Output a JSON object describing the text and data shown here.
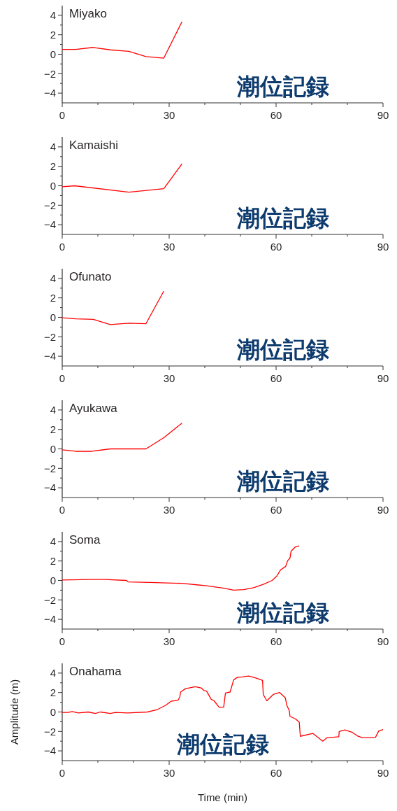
{
  "chart_data": [
    {
      "type": "line",
      "title": "Miyako",
      "x": [
        0,
        3.8,
        8.7,
        13.5,
        18.7,
        23.5,
        28.5,
        33.6
      ],
      "series": [
        {
          "color": "#ff0000",
          "values": [
            0.5,
            0.5,
            0.7,
            0.45,
            0.3,
            -0.25,
            -0.4,
            3.35
          ]
        }
      ],
      "xlim": [
        0,
        90
      ],
      "ylim": [
        -5,
        5
      ],
      "xticks": [
        0,
        {
          "value": 10,
          "label": null
        },
        {
          "value": 20,
          "label": null
        },
        30,
        {
          "value": 40,
          "label": null
        },
        {
          "value": 50,
          "label": null
        },
        60,
        {
          "value": 70,
          "label": null
        },
        {
          "value": 80,
          "label": null
        },
        90
      ],
      "yticks": [
        -4,
        {
          "value": -3,
          "label": null
        },
        -2,
        {
          "value": -1,
          "label": null
        },
        0,
        {
          "value": 1,
          "label": null
        },
        2,
        {
          "value": 3,
          "label": null
        },
        4
      ],
      "annotations": [
        "潮位記録"
      ]
    },
    {
      "type": "line",
      "title": "Kamaishi",
      "x": [
        0,
        3.5,
        18.7,
        28.5,
        33.6
      ],
      "series": [
        {
          "color": "#ff0000",
          "values": [
            -0.1,
            0,
            -0.65,
            -0.3,
            2.25
          ]
        }
      ],
      "xlim": [
        0,
        90
      ],
      "ylim": [
        -5,
        5
      ],
      "xticks": [
        0,
        {
          "value": 10,
          "label": null
        },
        {
          "value": 20,
          "label": null
        },
        30,
        {
          "value": 40,
          "label": null
        },
        {
          "value": 50,
          "label": null
        },
        60,
        {
          "value": 70,
          "label": null
        },
        {
          "value": 80,
          "label": null
        },
        90
      ],
      "yticks": [
        -4,
        {
          "value": -3,
          "label": null
        },
        -2,
        {
          "value": -1,
          "label": null
        },
        0,
        {
          "value": 1,
          "label": null
        },
        2,
        {
          "value": 3,
          "label": null
        },
        4
      ],
      "annotations": [
        "潮位記録"
      ]
    },
    {
      "type": "line",
      "title": "Ofunato",
      "x": [
        0,
        3.8,
        8.7,
        13.5,
        18.7,
        23.5,
        28.5
      ],
      "series": [
        {
          "color": "#ff0000",
          "values": [
            -0.05,
            -0.15,
            -0.2,
            -0.75,
            -0.6,
            -0.65,
            2.7
          ]
        }
      ],
      "xlim": [
        0,
        90
      ],
      "ylim": [
        -5,
        5
      ],
      "xticks": [
        0,
        {
          "value": 10,
          "label": null
        },
        {
          "value": 20,
          "label": null
        },
        30,
        {
          "value": 40,
          "label": null
        },
        {
          "value": 50,
          "label": null
        },
        60,
        {
          "value": 70,
          "label": null
        },
        {
          "value": 80,
          "label": null
        },
        90
      ],
      "yticks": [
        -4,
        {
          "value": -3,
          "label": null
        },
        -2,
        {
          "value": -1,
          "label": null
        },
        0,
        {
          "value": 1,
          "label": null
        },
        2,
        {
          "value": 3,
          "label": null
        },
        4
      ],
      "annotations": [
        "潮位記録"
      ]
    },
    {
      "type": "line",
      "title": "Ayukawa",
      "x": [
        0,
        3.8,
        8.3,
        13.5,
        18.7,
        23.5,
        28.5,
        33.6
      ],
      "series": [
        {
          "color": "#ff0000",
          "values": [
            -0.1,
            -0.25,
            -0.25,
            0,
            0,
            0,
            1.15,
            2.65
          ]
        }
      ],
      "xlim": [
        0,
        90
      ],
      "ylim": [
        -5,
        5
      ],
      "xticks": [
        0,
        {
          "value": 10,
          "label": null
        },
        {
          "value": 20,
          "label": null
        },
        30,
        {
          "value": 40,
          "label": null
        },
        {
          "value": 50,
          "label": null
        },
        60,
        {
          "value": 70,
          "label": null
        },
        {
          "value": 80,
          "label": null
        },
        90
      ],
      "yticks": [
        -4,
        {
          "value": -3,
          "label": null
        },
        -2,
        {
          "value": -1,
          "label": null
        },
        0,
        {
          "value": 1,
          "label": null
        },
        2,
        {
          "value": 3,
          "label": null
        },
        4
      ],
      "annotations": [
        "潮位記録"
      ]
    },
    {
      "type": "line",
      "title": "Soma",
      "x": [
        0,
        8,
        12,
        18,
        18.5,
        24.6,
        33.6,
        37.7,
        40.5,
        45.4,
        48.1,
        50.9,
        53.7,
        56.4,
        58.9,
        60.2,
        61.3,
        62.7,
        63.2,
        63.9,
        64.2,
        65.4,
        66.5
      ],
      "series": [
        {
          "color": "#ff0000",
          "values": [
            0.05,
            0.1,
            0.1,
            0,
            -0.15,
            -0.2,
            -0.3,
            -0.45,
            -0.55,
            -0.8,
            -1,
            -0.95,
            -0.75,
            -0.4,
            0,
            0.45,
            1.1,
            1.45,
            2,
            2.3,
            3,
            3.45,
            3.55
          ]
        }
      ],
      "xlim": [
        0,
        90
      ],
      "ylim": [
        -5,
        5
      ],
      "xticks": [
        0,
        {
          "value": 10,
          "label": null
        },
        {
          "value": 20,
          "label": null
        },
        30,
        {
          "value": 40,
          "label": null
        },
        {
          "value": 50,
          "label": null
        },
        60,
        {
          "value": 70,
          "label": null
        },
        {
          "value": 80,
          "label": null
        },
        90
      ],
      "yticks": [
        -4,
        {
          "value": -3,
          "label": null
        },
        -2,
        {
          "value": -1,
          "label": null
        },
        0,
        {
          "value": 1,
          "label": null
        },
        2,
        {
          "value": 3,
          "label": null
        },
        4
      ],
      "annotations": [
        "潮位記録"
      ]
    },
    {
      "type": "line",
      "title": "Onahama",
      "xlabel": "Time (min)",
      "ylabel": "Amplitude (m)",
      "x": [
        0,
        1.7,
        2.8,
        4.5,
        7.3,
        9.3,
        10.7,
        13.5,
        14.9,
        18.4,
        23.9,
        26.7,
        29.1,
        30.5,
        32.5,
        33,
        33.2,
        34.6,
        37.4,
        39.1,
        39.8,
        40.5,
        41.8,
        42.6,
        44,
        45.3,
        45.8,
        47.1,
        48.1,
        49.1,
        50.5,
        52.3,
        52.9,
        54.3,
        56.2,
        56.4,
        57.4,
        59.2,
        61,
        62.6,
        63,
        63.7,
        63.9,
        65.4,
        66.5,
        66.8,
        70.3,
        73.1,
        74.3,
        77.6,
        77.7,
        79.3,
        81.4,
        82.8,
        84.2,
        86.2,
        87.9,
        88.8,
        90
      ],
      "series": [
        {
          "color": "#ff0000",
          "values": [
            -0.05,
            -0.05,
            0.05,
            -0.1,
            0,
            -0.15,
            0,
            -0.15,
            -0.05,
            -0.1,
            0,
            0.25,
            0.7,
            1.1,
            1.2,
            1.55,
            2.05,
            2.4,
            2.6,
            2.45,
            2.2,
            2.15,
            1.3,
            1.15,
            0.5,
            0.5,
            1.95,
            2.05,
            3.3,
            3.55,
            3.6,
            3.7,
            3.65,
            3.5,
            3.25,
            1.8,
            1.15,
            1.8,
            2,
            1.45,
            0.7,
            0.15,
            -0.45,
            -0.7,
            -1.05,
            -2.5,
            -2.2,
            -3,
            -2.65,
            -2.55,
            -2,
            -1.85,
            -2.1,
            -2.45,
            -2.65,
            -2.65,
            -2.6,
            -1.95,
            -1.8
          ]
        }
      ],
      "xlim": [
        0,
        90
      ],
      "ylim": [
        -5,
        5
      ],
      "xticks": [
        0,
        {
          "value": 10,
          "label": null
        },
        {
          "value": 20,
          "label": null
        },
        30,
        {
          "value": 40,
          "label": null
        },
        {
          "value": 50,
          "label": null
        },
        60,
        {
          "value": 70,
          "label": null
        },
        {
          "value": 80,
          "label": null
        },
        90
      ],
      "yticks": [
        -4,
        {
          "value": -3,
          "label": null
        },
        -2,
        {
          "value": -1,
          "label": null
        },
        0,
        {
          "value": 1,
          "label": null
        },
        2,
        {
          "value": 3,
          "label": null
        },
        4
      ],
      "annotations": [
        "潮位記録"
      ]
    }
  ]
}
